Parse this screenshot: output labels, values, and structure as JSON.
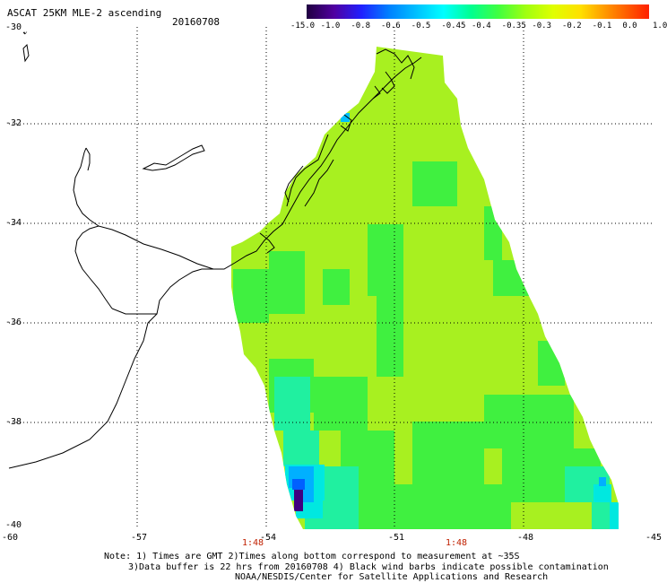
{
  "header": {
    "title": "ASCAT 25KM MLE-2 ascending",
    "date": "20160708"
  },
  "colorbar": {
    "labels": [
      "-15.0",
      "-1.0",
      "-0.8",
      "-0.6",
      "-0.5",
      "-0.45",
      "-0.4",
      "-0.35",
      "-0.3",
      "-0.2",
      "-0.1",
      "0.0",
      "1.0"
    ],
    "colors": [
      "#200040",
      "#4000a0",
      "#2020ff",
      "#0080ff",
      "#00c0ff",
      "#00ffff",
      "#00ff90",
      "#40ff40",
      "#80ff20",
      "#c0ff00",
      "#ffff00",
      "#ff9000",
      "#ff2000"
    ]
  },
  "axes": {
    "lat_labels": [
      "-30",
      "-32",
      "-34",
      "-36",
      "-38",
      "-40"
    ],
    "lon_labels": [
      "-60",
      "-57",
      "-54",
      "-51",
      "-48",
      "-45"
    ],
    "time_labels": [
      "1:48",
      "1:48"
    ]
  },
  "notes": {
    "line1": "Note: 1) Times are GMT 2)Times along bottom correspond to measurement at ~35S",
    "line2": "3)Data buffer is 22 hrs from 20160708 4) Black wind barbs indicate possible contamination",
    "line3": "NOAA/NESDIS/Center for Satellite Applications and Research"
  },
  "swath": {
    "base_color": "#a8f020",
    "zones": [
      {
        "name": "green",
        "color": "#40f040"
      },
      {
        "name": "teal",
        "color": "#20f0a0"
      },
      {
        "name": "cyan",
        "color": "#00e8e0"
      },
      {
        "name": "blue",
        "color": "#00b0ff"
      },
      {
        "name": "deepblue",
        "color": "#0060ff"
      },
      {
        "name": "purple",
        "color": "#400080"
      }
    ]
  }
}
